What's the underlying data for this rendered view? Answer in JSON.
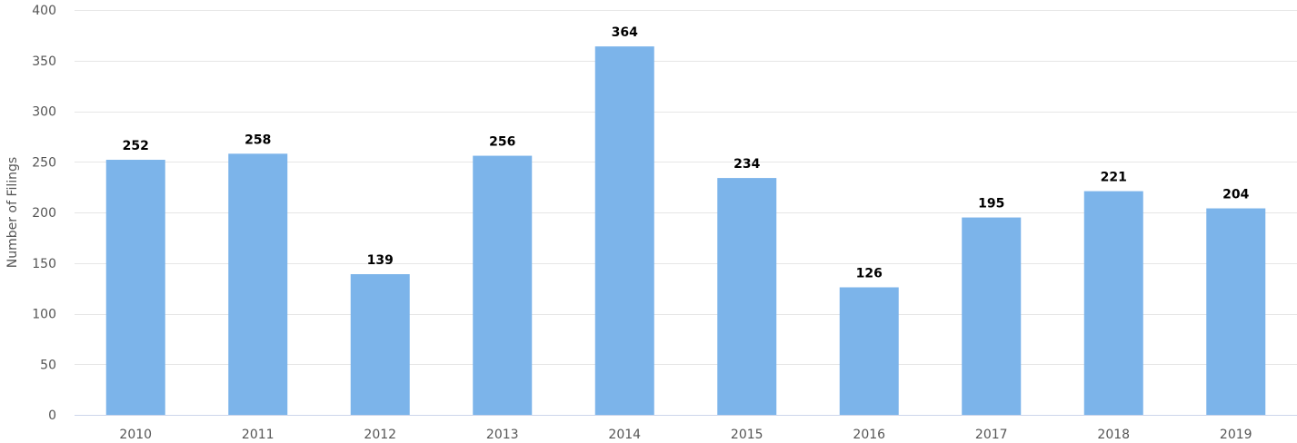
{
  "chart_data": {
    "type": "bar",
    "title": "",
    "xlabel": "",
    "ylabel": "Number of Filings",
    "categories": [
      "2010",
      "2011",
      "2012",
      "2013",
      "2014",
      "2015",
      "2016",
      "2017",
      "2018",
      "2019"
    ],
    "series": [
      {
        "values": [
          252,
          258,
          139,
          256,
          364,
          234,
          126,
          195,
          221,
          204
        ]
      }
    ],
    "ylim": [
      0,
      400
    ],
    "yticks": [
      0,
      50,
      100,
      150,
      200,
      250,
      300,
      350,
      400
    ],
    "grid": true,
    "data_labels": true,
    "legend": "none",
    "colors": {
      "bar": "#7cb4ea",
      "grid": "#e6e6e6",
      "axis": "#ccd6eb"
    }
  }
}
